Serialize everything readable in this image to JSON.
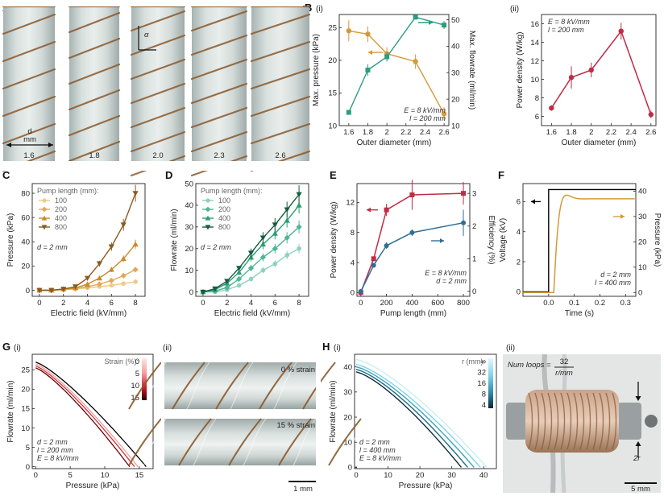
{
  "colors": {
    "orange": "#d49a3a",
    "teal": "#2a9d82",
    "crimson": "#c22a45",
    "blue": "#2e6e96",
    "tubeBg": "#c5cfcd",
    "wire": "#8a5a2e",
    "darkBrown": "#6a3f1f"
  },
  "panelA": {
    "letter": "A",
    "diameters": [
      "1.6",
      "1.8",
      "2.0",
      "2.3",
      "2.6"
    ],
    "d_label": "d",
    "d_unit": "mm",
    "alpha": "α"
  },
  "panelB": {
    "letter": "B",
    "i_label": "(i)",
    "ii_label": "(ii)"
  },
  "panelC": {
    "letter": "C"
  },
  "panelD": {
    "letter": "D"
  },
  "panelE": {
    "letter": "E"
  },
  "panelF": {
    "letter": "F"
  },
  "panelG": {
    "letter": "G",
    "i_label": "(i)",
    "ii_label": "(ii)",
    "strain0": "0 % strain",
    "strain15": "15 % strain",
    "scalebar": "1 mm"
  },
  "panelH": {
    "letter": "H",
    "i_label": "(i)",
    "ii_label": "(ii)",
    "num_loops_label": "Num loops =",
    "num_loops_num": "32",
    "num_loops_den": "r/mm",
    "two_r": "2r",
    "scalebar": "5 mm"
  },
  "chart_data": [
    {
      "id": "Bi",
      "type": "line",
      "xlabel": "Outer diameter (mm)",
      "ylabel": "Max. pressure (kPa)",
      "ylabel2": "Max. flowrate (ml/min)",
      "x": [
        1.6,
        1.8,
        2.0,
        2.3,
        2.6
      ],
      "xlim": [
        1.5,
        2.65
      ],
      "xticks": [
        1.6,
        1.8,
        2.0,
        2.2,
        2.4,
        2.6
      ],
      "ylim": [
        10,
        27
      ],
      "yticks": [
        10,
        15,
        20,
        25
      ],
      "ylim2": [
        10,
        52
      ],
      "yticks2": [
        10,
        20,
        30,
        40,
        50
      ],
      "series": [
        {
          "axis": "left",
          "color": "#d49a3a",
          "marker": "circle",
          "values": [
            24.5,
            24,
            21,
            19.8,
            11.8
          ],
          "err": [
            1.6,
            1.2,
            1.0,
            1.1,
            1.0
          ]
        },
        {
          "axis": "right",
          "color": "#2a9d82",
          "marker": "square",
          "values": [
            15,
            31,
            36,
            51,
            48
          ],
          "err": [
            0.5,
            2.2,
            1.8,
            0.6,
            1.5
          ]
        }
      ],
      "annotation": [
        "E = 8 kV/mm",
        "l = 200 mm"
      ]
    },
    {
      "id": "Bii",
      "type": "line",
      "xlabel": "Outer diameter (mm)",
      "ylabel": "Power density (W/kg)",
      "x": [
        1.6,
        1.8,
        2.0,
        2.3,
        2.6
      ],
      "xlim": [
        1.5,
        2.65
      ],
      "xticks": [
        1.6,
        1.8,
        2.0,
        2.2,
        2.4,
        2.6
      ],
      "ylim": [
        5,
        17
      ],
      "yticks": [
        6,
        8,
        10,
        12,
        14,
        16
      ],
      "series": [
        {
          "color": "#c22a45",
          "marker": "circle",
          "values": [
            6.9,
            10.2,
            11.0,
            15.2,
            6.2
          ],
          "err": [
            0.3,
            1.2,
            0.8,
            0.9,
            0.4
          ]
        }
      ],
      "annotation": [
        "E = 8 kV/mm",
        "l = 200 mm"
      ]
    },
    {
      "id": "C",
      "type": "line",
      "xlabel": "Electric field (kV/mm)",
      "ylabel": "Pressure (kPa)",
      "xlim": [
        -0.6,
        8.8
      ],
      "xticks": [
        0,
        2,
        4,
        6,
        8
      ],
      "ylim": [
        -5,
        88
      ],
      "yticks": [
        0,
        20,
        40,
        60,
        80
      ],
      "legend_title": "Pump length (mm):",
      "x": [
        0,
        1,
        2,
        3,
        4,
        5,
        6,
        7,
        8
      ],
      "series": [
        {
          "name": "100",
          "color": "#f0c98a",
          "marker": "circle",
          "values": [
            0,
            0,
            0.5,
            1,
            2,
            3,
            4,
            5.5,
            7
          ]
        },
        {
          "name": "200",
          "color": "#e3a859",
          "marker": "diamond",
          "values": [
            0,
            0,
            0.5,
            1.5,
            3,
            5,
            8,
            12,
            17
          ]
        },
        {
          "name": "400",
          "color": "#c98a2e",
          "marker": "triangle",
          "values": [
            0,
            0,
            1,
            2,
            5,
            10,
            17,
            26,
            38
          ]
        },
        {
          "name": "800",
          "color": "#8a5a1e",
          "marker": "triangle-down",
          "values": [
            0,
            0,
            1,
            3,
            10,
            22,
            36,
            54,
            80
          ]
        }
      ],
      "annotation": [
        "d = 2 mm"
      ]
    },
    {
      "id": "D",
      "type": "line",
      "xlabel": "Electric field (kV/mm)",
      "ylabel": "Flowrate (ml/min)",
      "xlim": [
        -0.6,
        8.8
      ],
      "xticks": [
        0,
        2,
        4,
        6,
        8
      ],
      "ylim": [
        -2,
        50
      ],
      "yticks": [
        0,
        10,
        20,
        30,
        40,
        50
      ],
      "legend_title": "Pump length (mm):",
      "x": [
        0,
        1,
        2,
        3,
        4,
        5,
        6,
        7,
        8
      ],
      "series": [
        {
          "name": "100",
          "color": "#8fd1bf",
          "marker": "circle",
          "values": [
            0,
            0,
            1,
            3,
            6,
            10,
            13,
            17,
            20
          ]
        },
        {
          "name": "200",
          "color": "#4fb596",
          "marker": "diamond",
          "values": [
            0,
            0.5,
            2,
            6,
            11,
            16,
            20,
            25,
            30
          ]
        },
        {
          "name": "400",
          "color": "#2a9d72",
          "marker": "triangle",
          "values": [
            0,
            1,
            4,
            9,
            16,
            22,
            27,
            33,
            40
          ]
        },
        {
          "name": "800",
          "color": "#145c40",
          "marker": "triangle-down",
          "values": [
            0,
            1.5,
            5,
            11,
            18,
            25,
            31,
            38,
            45
          ]
        }
      ],
      "annotation": [
        "d = 2 mm"
      ]
    },
    {
      "id": "E",
      "type": "line",
      "xlabel": "Pump length (mm)",
      "ylabel": "Power density (W/kg)",
      "ylabel2": "Efficiency (%)",
      "x": [
        0,
        100,
        200,
        400,
        800
      ],
      "xlim": [
        -30,
        850
      ],
      "xticks": [
        0,
        200,
        400,
        600,
        800
      ],
      "ylim": [
        -0.5,
        14.5
      ],
      "yticks": [
        0,
        4,
        8,
        12
      ],
      "ylim2": [
        -0.15,
        3.3
      ],
      "yticks2": [
        0,
        1,
        2,
        3
      ],
      "series": [
        {
          "axis": "left",
          "color": "#c22a45",
          "marker": "square",
          "values": [
            0,
            4.5,
            11,
            13,
            13.2
          ],
          "err": [
            0,
            0.3,
            0.8,
            2.0,
            1.5
          ]
        },
        {
          "axis": "right",
          "color": "#2e6e96",
          "marker": "circle",
          "values": [
            0,
            0.8,
            1.4,
            1.8,
            2.1
          ],
          "err": [
            0,
            0.05,
            0.1,
            0.1,
            0.4
          ]
        }
      ],
      "annotation": [
        "E = 8 kV/mm",
        "d = 2 mm"
      ]
    },
    {
      "id": "F",
      "type": "line",
      "xlabel": "Time (s)",
      "ylabel": "Voltage (kV)",
      "ylabel2": "Pressure (kPa)",
      "xlim": [
        -0.1,
        0.34
      ],
      "xticks": [
        0.0,
        0.1,
        0.2,
        0.3
      ],
      "xticklabels": [
        "0.0",
        "0.1",
        "0.2",
        "0.3"
      ],
      "ylim": [
        -0.3,
        7.2
      ],
      "yticks": [
        0,
        2,
        4,
        6
      ],
      "ylim2": [
        -1.5,
        43
      ],
      "yticks2": [
        0,
        10,
        20,
        30,
        40
      ],
      "series": [
        {
          "axis": "left",
          "color": "#000000",
          "name": "voltage"
        },
        {
          "axis": "right",
          "color": "#d49a3a",
          "name": "pressure"
        }
      ],
      "annotation": [
        "d = 2 mm",
        "l = 400 mm"
      ]
    },
    {
      "id": "Gi",
      "type": "line",
      "xlabel": "Pressure (kPa)",
      "ylabel": "Flowrate (ml/min)",
      "xlim": [
        -0.5,
        17
      ],
      "xticks": [
        0,
        5,
        10,
        15
      ],
      "ylim": [
        -0.5,
        29
      ],
      "yticks": [
        0,
        5,
        10,
        15,
        20,
        25
      ],
      "colorbar_title": "Strain (%):",
      "colorbar_ticks": [
        "0",
        "5",
        "10",
        "15"
      ],
      "series": [
        {
          "name": "0",
          "color": "#000000",
          "x0": 27,
          "x1": 16
        },
        {
          "name": "5",
          "color": "#f2a0a0",
          "x0": 26.5,
          "x1": 14.8
        },
        {
          "name": "10",
          "color": "#d6303a",
          "x0": 26,
          "x1": 14.3
        },
        {
          "name": "15",
          "color": "#6e0000",
          "x0": 25.5,
          "x1": 13.6
        }
      ],
      "annotation": [
        "d = 2 mm",
        "l = 200 mm",
        "E = 8 kV/mm"
      ]
    },
    {
      "id": "Hi",
      "type": "line",
      "xlabel": "Pressure (kPa)",
      "ylabel": "Flowrate (ml/min)",
      "xlim": [
        -0.5,
        44
      ],
      "xticks": [
        0,
        10,
        20,
        30,
        40
      ],
      "ylim": [
        -0.5,
        45
      ],
      "yticks": [
        0,
        10,
        20,
        30,
        40
      ],
      "colorbar_title": "r (mm):",
      "colorbar_ticks": [
        "∞",
        "32",
        "16",
        "8",
        "4"
      ],
      "series": [
        {
          "name": "∞",
          "color": "#c9eef7",
          "y0": 43,
          "xend": 41
        },
        {
          "name": "32",
          "color": "#7fd3e8",
          "y0": 41,
          "xend": 39
        },
        {
          "name": "16",
          "color": "#3aa5c0",
          "y0": 40,
          "xend": 37
        },
        {
          "name": "8",
          "color": "#1d6b85",
          "y0": 39,
          "xend": 35
        },
        {
          "name": "4",
          "color": "#0d2f3a",
          "y0": 38,
          "xend": 33
        }
      ],
      "annotation": [
        "d = 2 mm",
        "l = 400 mm",
        "E = 8 kV/mm"
      ]
    }
  ]
}
